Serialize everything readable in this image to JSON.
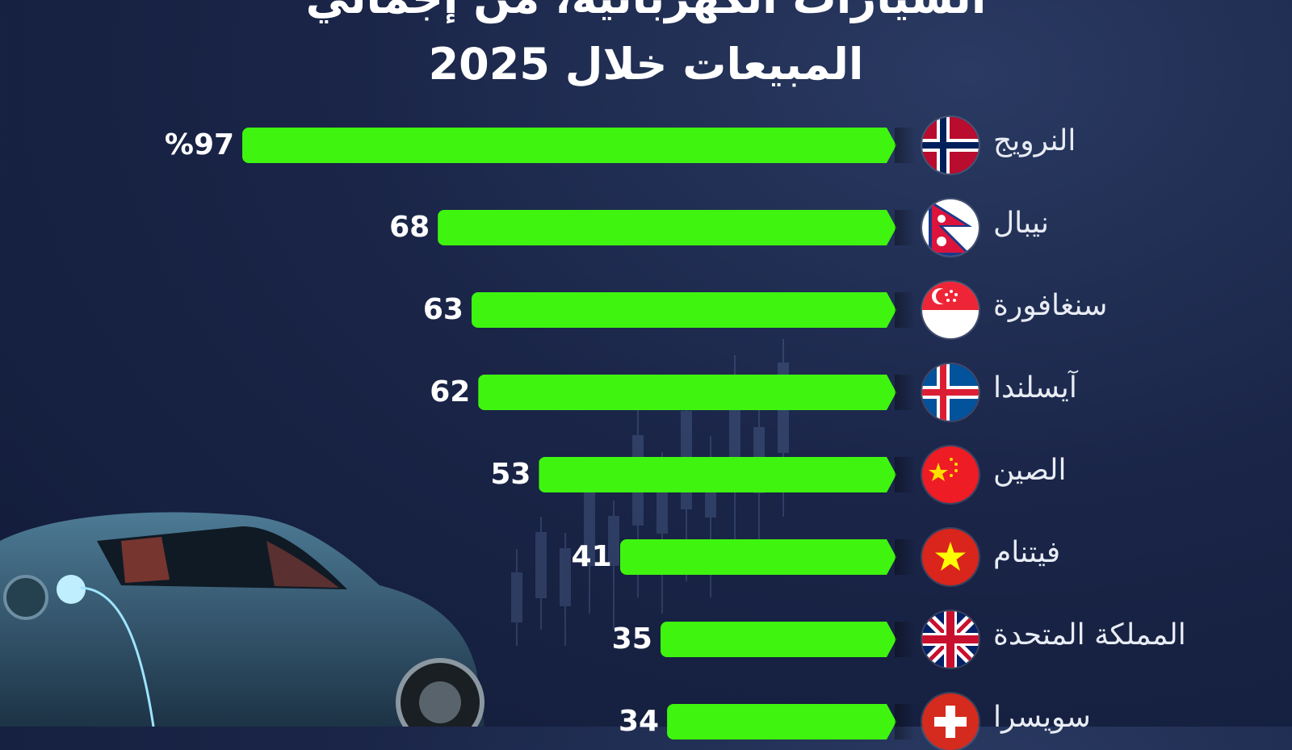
{
  "title_lines": [
    "السيارات الكهربائية، من إجمالي",
    "المبيعات خلال 2025"
  ],
  "chart_data": {
    "type": "bar",
    "orientation": "horizontal",
    "categories": [
      "النرويج",
      "نيبال",
      "سنغافورة",
      "آيسلندا",
      "الصين",
      "فيتنام",
      "المملكة المتحدة",
      "سويسرا"
    ],
    "values": [
      97,
      68,
      63,
      62,
      53,
      41,
      35,
      34
    ],
    "value_labels": [
      "%97",
      "68",
      "63",
      "62",
      "53",
      "41",
      "35",
      "34"
    ],
    "flags": [
      "norway-flag",
      "nepal-flag",
      "singapore-flag",
      "iceland-flag",
      "china-flag",
      "vietnam-flag",
      "uk-flag",
      "switzerland-flag"
    ],
    "bar_color": "#3ff50f",
    "xlim": [
      0,
      100
    ],
    "grid": false,
    "legend": "none"
  },
  "colors": {
    "background": "#1a2548",
    "bar": "#3ff50f",
    "text": "#ffffff"
  }
}
